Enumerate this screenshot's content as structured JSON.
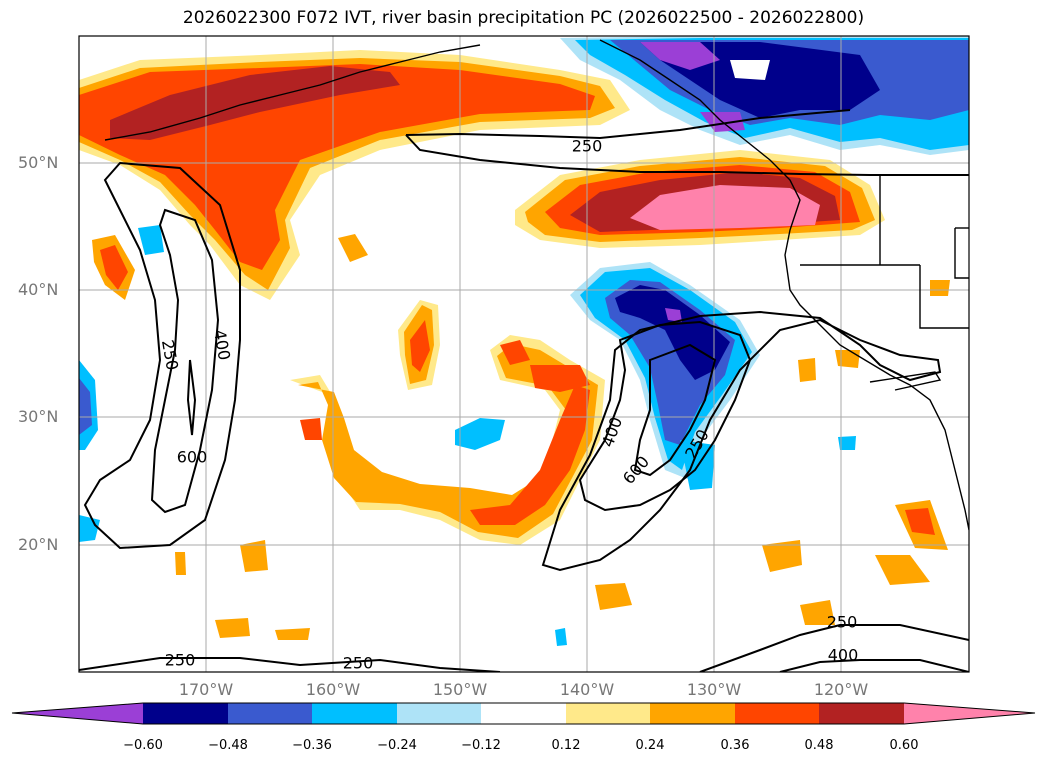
{
  "title": "2026022300 F072 IVT, river basin precipitation PC (2026022500 - 2026022800)",
  "lat_labels": [
    "50°N",
    "40°N",
    "30°N",
    "20°N"
  ],
  "lon_labels": [
    "170°W",
    "160°W",
    "150°W",
    "140°W",
    "130°W",
    "120°W"
  ],
  "contour_labels": [
    "250",
    "400",
    "250",
    "600",
    "400",
    "600",
    "250",
    "250",
    "250",
    "250",
    "400"
  ],
  "colorbar": {
    "ticks": [
      "−0.60",
      "−0.48",
      "−0.36",
      "−0.24",
      "−0.12",
      "0.12",
      "0.24",
      "0.36",
      "0.48",
      "0.60"
    ],
    "colors": [
      "#9b3fd6",
      "#00008b",
      "#3a5acf",
      "#00bfff",
      "#aee3f7",
      "#ffffff",
      "#ffe98a",
      "#ffa500",
      "#ff4500",
      "#b22222",
      "#ff82ab"
    ]
  }
}
